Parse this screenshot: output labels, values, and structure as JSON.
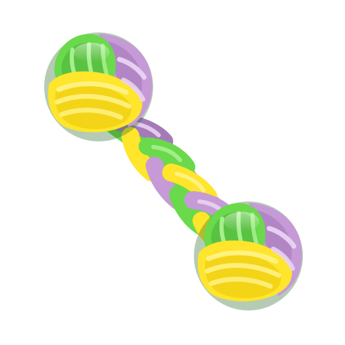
{
  "image": {
    "subject": "rope-dog-toy",
    "icon": "rope-dog-toy-icon",
    "colors": {
      "background": "#ffffff",
      "green": "#6ad94b",
      "green_dark": "#4caf3c",
      "green_light": "#a5f08d",
      "purple": "#c59ad6",
      "purple_dark": "#a57ab9",
      "purple_light": "#ead3f3",
      "yellow": "#ffe52b",
      "yellow_dark": "#e6bf00",
      "yellow_light": "#fff38a",
      "shadow": "#2a6b2a"
    }
  }
}
